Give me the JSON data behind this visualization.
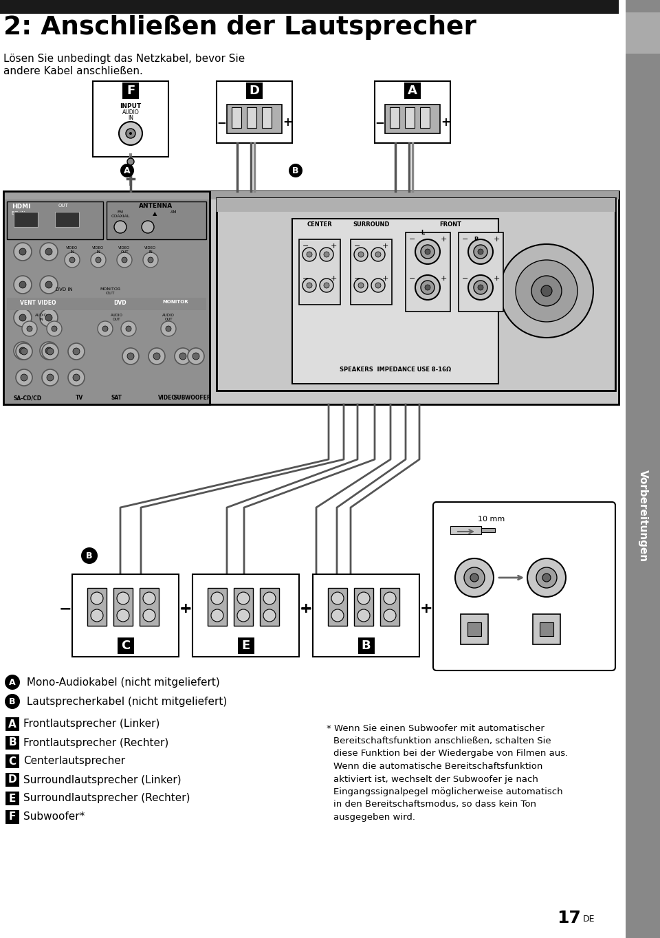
{
  "title": "2: Anschließen der Lautsprecher",
  "subtitle_line1": "Lösen Sie unbedingt das Netzkabel, bevor Sie",
  "subtitle_line2": "andere Kabel anschließen.",
  "sidebar_text": "Vorbereitungen",
  "top_bar_color": "#1a1a1a",
  "bg_color": "#ffffff",
  "sidebar_color": "#888888",
  "sidebar_sq_color": "#aaaaaa",
  "amp_body_color": "#c8c8c8",
  "amp_dark_color": "#a0a0a0",
  "amp_left_dark": "#909090",
  "circle_legend_A": "Ⓐ Mono-Audiokabel (nicht mitgeliefert)",
  "circle_legend_B": "Ⓑ Lautsprecherkabel (nicht mitgeliefert)",
  "sq_legend": [
    [
      "A",
      "Frontlautsprecher (Linker)"
    ],
    [
      "B",
      "Frontlautsprecher (Rechter)"
    ],
    [
      "C",
      "Centerlautsprecher"
    ],
    [
      "D",
      "Surroundlautsprecher (Linker)"
    ],
    [
      "E",
      "Surroundlautsprecher (Rechter)"
    ],
    [
      "F",
      "Subwoofer*"
    ]
  ],
  "footnote_line0": "* Wenn Sie einen Subwoofer mit automatischer",
  "footnote_lines": [
    "Bereitschaftsfunktion anschließen, schalten Sie",
    "diese Funktion bei der Wiedergabe von Filmen aus.",
    "Wenn die automatische Bereitschaftsfunktion",
    "aktiviert ist, wechselt der Subwoofer je nach",
    "Eingangssignalpegel möglicherweise automatisch",
    "in den Bereitschaftsmodus, so dass kein Ton",
    "ausgegeben wird."
  ],
  "page_num": "17",
  "page_sup": "DE",
  "wire_color": "#555555",
  "wire_color2": "#777777",
  "connector_gray": "#b0b0b0",
  "terminal_light": "#d8d8d8"
}
